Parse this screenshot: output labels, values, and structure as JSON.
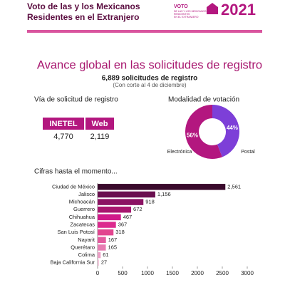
{
  "header": {
    "title_lines": [
      "Voto de las y los Mexicanos",
      "Residentes en el Extranjero"
    ],
    "logo_lines": [
      "VOTO",
      "DE LAS Y LOS MEXICANOS",
      "RESIDENTES",
      "EN EL EXTRANJERO"
    ],
    "year": "2021"
  },
  "headline": "Avance global en las solicitudes de registro",
  "total": "6,889 solicitudes de registro",
  "cutoff": "(Con corte al 4 de diciembre)",
  "channels": {
    "title": "Vía de solicitud de registro",
    "headers": [
      "INETEL",
      "Web"
    ],
    "values": [
      "4,770",
      "2,119"
    ]
  },
  "chart_data": [
    {
      "type": "pie",
      "title": "Modalidad de votación",
      "categories": [
        "Electrónica",
        "Postal"
      ],
      "values": [
        56,
        44
      ],
      "value_labels": [
        "56%",
        "44%"
      ],
      "colors": [
        "#b3177f",
        "#7d3fd8"
      ]
    },
    {
      "type": "hbar",
      "title": "Cifras hasta el momento...",
      "categories": [
        "Ciudad de México",
        "Jalisco",
        "Michoacán",
        "Guerrero",
        "Chihuahua",
        "Zacatecas",
        "San Luis Potosí",
        "Nayarit",
        "Querétaro",
        "Colima",
        "Baja California Sur"
      ],
      "values": [
        2561,
        1156,
        918,
        672,
        467,
        367,
        318,
        167,
        165,
        61,
        27
      ],
      "value_labels": [
        "2,561",
        "1,156",
        "918",
        "672",
        "467",
        "367",
        "318",
        "167",
        "165",
        "61",
        "27"
      ],
      "colors": [
        "#3a0a2c",
        "#6a0f4f",
        "#8b1263",
        "#a8166f",
        "#d0198a",
        "#dc2a8e",
        "#e2458f",
        "#e35c9f",
        "#e77cb2",
        "#ec9fc6",
        "#f2c3da"
      ],
      "xlim": [
        0,
        3000
      ],
      "xticks": [
        0,
        500,
        1000,
        1500,
        2000,
        2500,
        3000
      ]
    }
  ]
}
